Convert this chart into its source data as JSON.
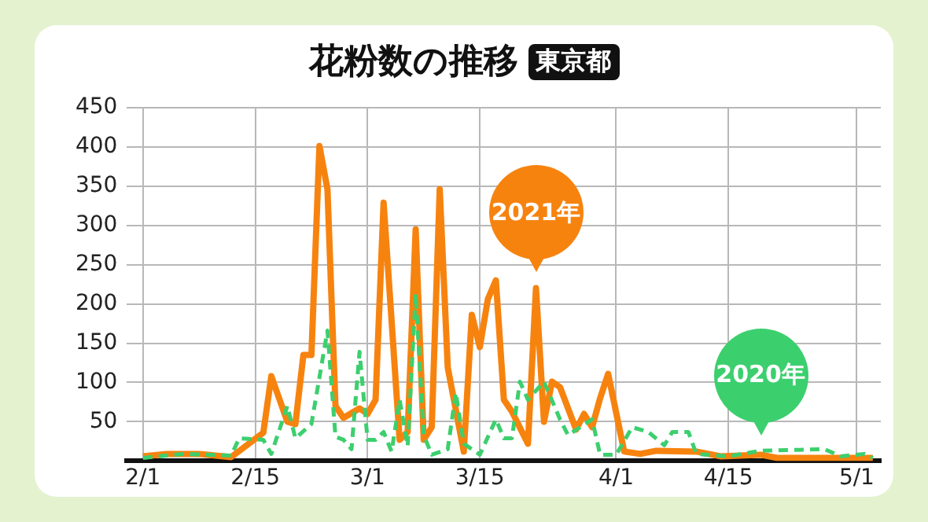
{
  "chart_data": {
    "type": "line",
    "title": "花粉数の推移",
    "subtitle": "東京都",
    "xlim": [
      "--01-30",
      "--05-04"
    ],
    "xticks": [
      {
        "value": "--02-01",
        "label": "2/1"
      },
      {
        "value": "--02-15",
        "label": "2/15"
      },
      {
        "value": "--03-01",
        "label": "3/1"
      },
      {
        "value": "--03-15",
        "label": "3/15"
      },
      {
        "value": "--04-01",
        "label": "4/1"
      },
      {
        "value": "--04-15",
        "label": "4/15"
      },
      {
        "value": "--05-01",
        "label": "5/1"
      }
    ],
    "ylim": [
      0,
      450
    ],
    "yticks": [
      50,
      100,
      150,
      200,
      250,
      300,
      350,
      400,
      450
    ],
    "grid": true,
    "legend": false,
    "marker": "none",
    "series": [
      {
        "color": "#f7830f",
        "line_style": "solid",
        "x": [
          "--02-01",
          "--02-04",
          "--02-08",
          "--02-12",
          "--02-16",
          "--02-17",
          "--02-19",
          "--02-20",
          "--02-21",
          "--02-22",
          "--02-23",
          "--02-24",
          "--02-25",
          "--02-26",
          "--02-28",
          "--03-01",
          "--03-02",
          "--03-03",
          "--03-05",
          "--03-06",
          "--03-07",
          "--03-08",
          "--03-09",
          "--03-10",
          "--03-11",
          "--03-13",
          "--03-14",
          "--03-15",
          "--03-16",
          "--03-17",
          "--03-18",
          "--03-19",
          "--03-21",
          "--03-22",
          "--03-23",
          "--03-24",
          "--03-25",
          "--03-27",
          "--03-28",
          "--03-29",
          "--03-30",
          "--03-31",
          "--04-02",
          "--04-04",
          "--04-06",
          "--04-11",
          "--04-14",
          "--04-19",
          "--04-21",
          "--05-03"
        ],
        "values": [
          6,
          9,
          9,
          5,
          36,
          108,
          50,
          47,
          135,
          135,
          401,
          346,
          70,
          55,
          67,
          60,
          78,
          329,
          27,
          37,
          295,
          27,
          43,
          346,
          119,
          12,
          186,
          145,
          206,
          230,
          78,
          63,
          22,
          220,
          50,
          101,
          94,
          40,
          60,
          43,
          80,
          111,
          12,
          9,
          13,
          12,
          6,
          8,
          4,
          4
        ]
      },
      {
        "color": "#3ccf6e",
        "line_style": "dashed",
        "x": [
          "--02-01",
          "--02-06",
          "--02-12",
          "--02-13",
          "--02-16",
          "--02-17",
          "--02-19",
          "--02-20",
          "--02-22",
          "--02-24",
          "--02-25",
          "--02-26",
          "--02-27",
          "--02-28",
          "--03-01",
          "--03-02",
          "--03-03",
          "--03-04",
          "--03-05",
          "--03-06",
          "--03-07",
          "--03-08",
          "--03-09",
          "--03-11",
          "--03-12",
          "--03-13",
          "--03-15",
          "--03-17",
          "--03-18",
          "--03-19",
          "--03-20",
          "--03-21",
          "--03-23",
          "--03-25",
          "--03-26",
          "--03-29",
          "--03-30",
          "--04-01",
          "--04-03",
          "--04-05",
          "--04-07",
          "--04-08",
          "--04-10",
          "--04-11",
          "--04-15",
          "--04-19",
          "--04-27",
          "--04-29",
          "--05-02",
          "--05-03"
        ],
        "values": [
          4,
          9,
          7,
          29,
          27,
          9,
          70,
          29,
          47,
          166,
          31,
          27,
          15,
          139,
          27,
          27,
          37,
          12,
          78,
          19,
          213,
          33,
          8,
          15,
          87,
          22,
          8,
          53,
          29,
          29,
          101,
          78,
          101,
          53,
          33,
          53,
          8,
          8,
          43,
          37,
          20,
          37,
          37,
          9,
          6,
          13,
          15,
          6,
          9,
          4
        ]
      }
    ],
    "annotations": [
      {
        "text": "2021年",
        "x": "--03-22",
        "y": 220
      },
      {
        "text": "2020年",
        "x": "--04-19",
        "y": 13
      }
    ]
  }
}
